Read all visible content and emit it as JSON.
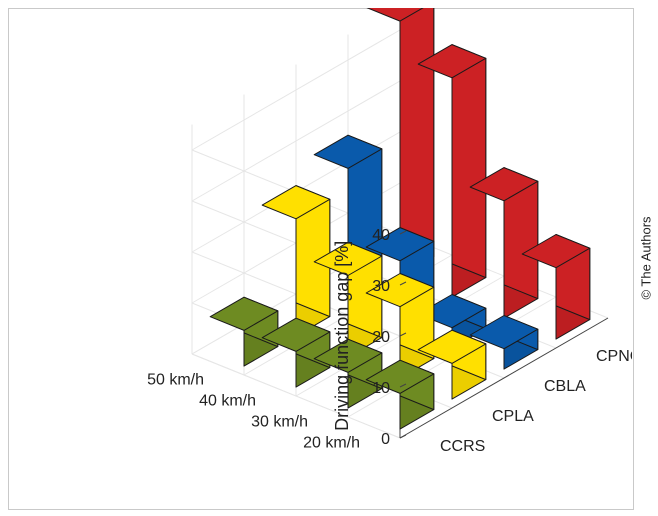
{
  "credit": "© The Authors",
  "chart_data": {
    "type": "bar3d",
    "ylabel": "Driving function gap [%]",
    "zlim": [
      0,
      45
    ],
    "zticks": [
      0,
      10,
      20,
      30,
      40
    ],
    "speeds": [
      "50 km/h",
      "40 km/h",
      "30 km/h",
      "20 km/h"
    ],
    "functions": [
      "CCRS",
      "CPLA",
      "CBLA",
      "CPNC"
    ],
    "colors": {
      "CCRS": "#6e8b22",
      "CPLA": "#ffe000",
      "CBLA": "#0a5aab",
      "CPNC": "#cc2124"
    },
    "series": [
      {
        "name": "CCRS",
        "values": [
          7,
          7,
          7,
          7
        ]
      },
      {
        "name": "CPLA",
        "values": [
          23,
          16,
          14,
          7
        ]
      },
      {
        "name": "CBLA",
        "values": [
          27,
          13,
          4,
          4
        ]
      },
      {
        "name": "CPNC",
        "values": [
          50,
          43,
          23,
          14
        ]
      }
    ],
    "grid": true
  }
}
